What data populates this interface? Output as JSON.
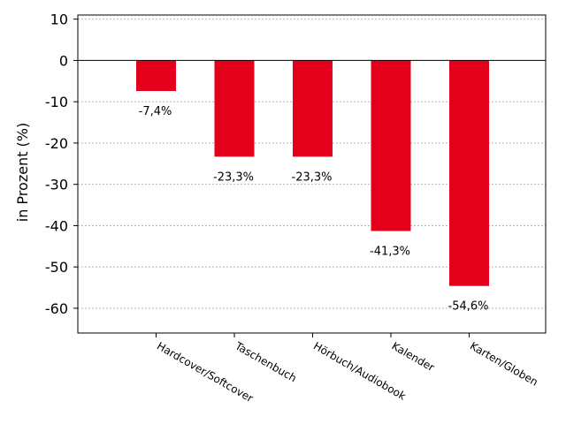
{
  "chart_data": {
    "type": "bar",
    "title": "",
    "xlabel": "",
    "ylabel": "in Prozent (%)",
    "categories": [
      "Hardcover/Softcover",
      "Taschenbuch",
      "Hörbuch/Audiobook",
      "Kalender",
      "Karten/Globen"
    ],
    "values": [
      -7.4,
      -23.3,
      -23.3,
      -41.3,
      -54.6
    ],
    "data_labels": [
      "-7,4%",
      "-23,3%",
      "-23,3%",
      "-41,3%",
      "-54,6%"
    ],
    "ylim": [
      -66,
      11
    ],
    "yticks": [
      10,
      0,
      -10,
      -20,
      -30,
      -40,
      -50,
      -60
    ],
    "ytick_labels": [
      "10",
      "0",
      "-10",
      "-20",
      "-30",
      "-40",
      "-50",
      "-60"
    ],
    "grid": true,
    "bar_color": "#e2001a"
  }
}
